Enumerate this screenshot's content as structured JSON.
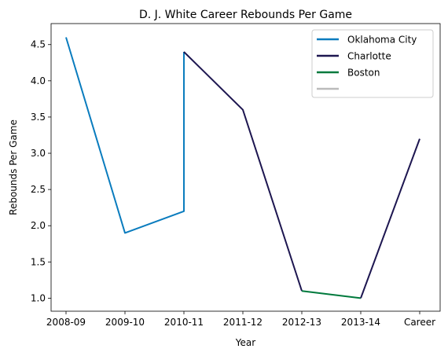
{
  "chart_data": {
    "type": "line",
    "title": "D. J. White Career Rebounds Per Game",
    "xlabel": "Year",
    "ylabel": "Rebounds Per Game",
    "categories": [
      "2008-09",
      "2009-10",
      "2010-11",
      "2011-12",
      "2012-13",
      "2013-14",
      "Career"
    ],
    "ylim": [
      0.82,
      4.79
    ],
    "yticks": [
      1.0,
      1.5,
      2.0,
      2.5,
      3.0,
      3.5,
      4.0,
      4.5
    ],
    "ytick_labels": [
      "1.0",
      "1.5",
      "2.0",
      "2.5",
      "3.0",
      "3.5",
      "4.0",
      "4.5"
    ],
    "grid": false,
    "legend_position": "top-right",
    "series": [
      {
        "name": "Oklahoma City",
        "color": "#0a7cbe",
        "points": [
          {
            "x": "2008-09",
            "y": 4.6
          },
          {
            "x": "2009-10",
            "y": 1.9
          },
          {
            "x": "2010-11",
            "y": 2.2
          },
          {
            "x": "2010-11",
            "y": 4.4
          }
        ]
      },
      {
        "name": "Charlotte",
        "color": "#1d1650",
        "points": [
          {
            "x": "2010-11",
            "y": 4.4
          },
          {
            "x": "2011-12",
            "y": 3.6
          },
          {
            "x": "2012-13",
            "y": 1.1
          }
        ]
      },
      {
        "name": "Boston",
        "color": "#007a3d",
        "points": [
          {
            "x": "2012-13",
            "y": 1.1
          },
          {
            "x": "2013-14",
            "y": 1.0
          }
        ]
      },
      {
        "name": "",
        "color": "#1d1650",
        "legend_color": "#bbbbbb",
        "points": [
          {
            "x": "2013-14",
            "y": 1.0
          },
          {
            "x": "Career",
            "y": 3.2
          }
        ]
      }
    ]
  }
}
